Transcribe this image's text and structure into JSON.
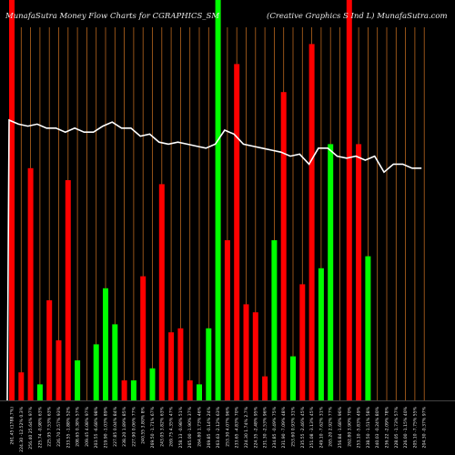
{
  "header": {
    "left": "MunafaSutra  Money Flow  Charts for CGRAPHICS_SM",
    "right": "(Creative    Graphics S Ind L) MunafaSutra.com"
  },
  "chart_data": {
    "type": "bar",
    "title": "MunafaSutra  Money Flow  Charts for CGRAPHICS_SM",
    "subtitle": "(Creative    Graphics S Ind L) MunafaSutra.com",
    "ylim": [
      0,
      100
    ],
    "grid": true,
    "colors": {
      "up": "#00ff00",
      "down": "#ff0000",
      "line": "#ffffff",
      "grid": "#b8661e",
      "background": "#000000"
    },
    "categories": [
      "261.45 (1788.7%)",
      "224.30 -12.52% 0.3%",
      "256.40 25.64% 97%",
      "225.74 -0.98% 63%",
      "225.95 7.53% 63%",
      "226.70 2.57% 93%",
      "233.55 -1.88% 52%",
      "208.65 0.38% 57%",
      "209.45 4.08% 97%",
      "203.55 -6.68% 98%",
      "219.90 -1.03% 89%",
      "227.85 0.04% 84%",
      "238.20 1.89% 85%",
      "227.90 0.06% 77%",
      "240.55 3.80% 8%",
      "269.50 -1.71% 67%",
      "243.05 3.82% 63%",
      "269.75 4.35% 47%",
      "258.13 -0.98% 51%",
      "265.00 -1.90% 37%",
      "264.80 1.73% 46%",
      "269.85 -0.14% 24%",
      "263.63 -2.12% 63%",
      "253.30 4.07% 96%",
      "233.65 -4.83% 70%",
      "224.30 1.74% 2.7%",
      "224.35 -2.48% 95%",
      "231.30 -2.53% 96%",
      "234.85 -0.49% 75%",
      "231.90 -7.09% 48%",
      "253.60 0.93% 31%",
      "235.55 -2.46% 45%",
      "251.08 -3.13% 45%",
      "249.10 -7.62% 31%",
      "265.20 2.92% 77%",
      "256.84 -1.68% 96%",
      "262.80 3.90% 70%",
      "253.10 -5.83% 49%",
      "238.50 -1.51% 58%",
      "240.03 -0.24% 80%",
      "236.22 -2.09% 78%",
      "228.05 -1.73% 57%",
      "226.00 -1.15% 40%",
      "205.10 -7.75% 55%",
      "204.30 -0.37% 97%"
    ],
    "series": [
      {
        "kind": "money-flow-bars",
        "colors_seq": [
          "down",
          "down",
          "down",
          "up",
          "down",
          "down",
          "down",
          "up",
          "down",
          "up",
          "up",
          "up",
          "down",
          "up",
          "down",
          "up",
          "down",
          "down",
          "down",
          "down",
          "up",
          "up",
          "up",
          "down",
          "down",
          "down",
          "down",
          "down",
          "up",
          "down",
          "up",
          "down",
          "down",
          "up",
          "up",
          "down",
          "down",
          "down",
          "up",
          "down",
          "up",
          "down",
          "up",
          "down",
          "up"
        ],
        "values": [
          100,
          7,
          58,
          4,
          25,
          15,
          55,
          10,
          0,
          14,
          28,
          19,
          5,
          5,
          31,
          8,
          54,
          17,
          18,
          5,
          4,
          18,
          100,
          40,
          84,
          24,
          22,
          6,
          40,
          77,
          11,
          29,
          89,
          33,
          64,
          0,
          100,
          64,
          36,
          0,
          0,
          0,
          0,
          0,
          0
        ]
      },
      {
        "kind": "price-line",
        "values": [
          70,
          69,
          68.5,
          69,
          68,
          68,
          67,
          68,
          67,
          67,
          68.5,
          69.5,
          68,
          68,
          66,
          66.5,
          64.5,
          64,
          64.5,
          64,
          63.5,
          63,
          64,
          67.5,
          66.5,
          64,
          63.5,
          63,
          62.5,
          62,
          61,
          61.5,
          59,
          63,
          63,
          61,
          60.5,
          61,
          60,
          61,
          57,
          59,
          59,
          58,
          58
        ]
      }
    ]
  }
}
